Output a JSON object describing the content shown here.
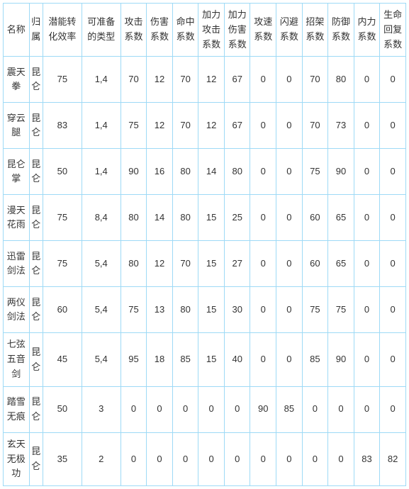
{
  "columns": [
    "名称",
    "归属",
    "潜能转化效率",
    "可准备的类型",
    "攻击系数",
    "伤害系数",
    "命中系数",
    "加力攻击系数",
    "加力伤害系数",
    "攻速系数",
    "闪避系数",
    "招架系数",
    "防御系数",
    "内力系数",
    "生命回复系数"
  ],
  "rows": [
    {
      "name": "震天拳",
      "attr": "昆仑",
      "eff": "75",
      "type": "1,4",
      "atk": "70",
      "dmg": "12",
      "hit": "70",
      "patk": "12",
      "pdmg": "67",
      "spd": "0",
      "dodge": "0",
      "parry": "70",
      "def": "80",
      "mp": "0",
      "hp": "0"
    },
    {
      "name": "穿云腿",
      "attr": "昆仑",
      "eff": "83",
      "type": "1,4",
      "atk": "75",
      "dmg": "12",
      "hit": "70",
      "patk": "12",
      "pdmg": "67",
      "spd": "0",
      "dodge": "0",
      "parry": "70",
      "def": "73",
      "mp": "0",
      "hp": "0"
    },
    {
      "name": "昆仑掌",
      "attr": "昆仑",
      "eff": "50",
      "type": "1,4",
      "atk": "90",
      "dmg": "16",
      "hit": "80",
      "patk": "14",
      "pdmg": "80",
      "spd": "0",
      "dodge": "0",
      "parry": "75",
      "def": "90",
      "mp": "0",
      "hp": "0"
    },
    {
      "name": "漫天花雨",
      "attr": "昆仑",
      "eff": "75",
      "type": "8,4",
      "atk": "80",
      "dmg": "14",
      "hit": "80",
      "patk": "15",
      "pdmg": "25",
      "spd": "0",
      "dodge": "0",
      "parry": "60",
      "def": "65",
      "mp": "0",
      "hp": "0"
    },
    {
      "name": "迅雷剑法",
      "attr": "昆仑",
      "eff": "75",
      "type": "5,4",
      "atk": "80",
      "dmg": "12",
      "hit": "70",
      "patk": "15",
      "pdmg": "27",
      "spd": "0",
      "dodge": "0",
      "parry": "60",
      "def": "65",
      "mp": "0",
      "hp": "0"
    },
    {
      "name": "两仪剑法",
      "attr": "昆仑",
      "eff": "60",
      "type": "5,4",
      "atk": "75",
      "dmg": "13",
      "hit": "80",
      "patk": "15",
      "pdmg": "30",
      "spd": "0",
      "dodge": "0",
      "parry": "75",
      "def": "75",
      "mp": "0",
      "hp": "0"
    },
    {
      "name": "七弦五音剑",
      "attr": "昆仑",
      "eff": "45",
      "type": "5,4",
      "atk": "95",
      "dmg": "18",
      "hit": "85",
      "patk": "15",
      "pdmg": "40",
      "spd": "0",
      "dodge": "0",
      "parry": "85",
      "def": "90",
      "mp": "0",
      "hp": "0"
    },
    {
      "name": "踏雪无痕",
      "attr": "昆仑",
      "eff": "50",
      "type": "3",
      "atk": "0",
      "dmg": "0",
      "hit": "0",
      "patk": "0",
      "pdmg": "0",
      "spd": "90",
      "dodge": "85",
      "parry": "0",
      "def": "0",
      "mp": "0",
      "hp": "0"
    },
    {
      "name": "玄天无极功",
      "attr": "昆仑",
      "eff": "35",
      "type": "2",
      "atk": "0",
      "dmg": "0",
      "hit": "0",
      "patk": "0",
      "pdmg": "0",
      "spd": "0",
      "dodge": "0",
      "parry": "0",
      "def": "0",
      "mp": "83",
      "hp": "82"
    }
  ],
  "colors": {
    "border": "#9edaf6",
    "text": "#333333",
    "background": "#ffffff"
  }
}
